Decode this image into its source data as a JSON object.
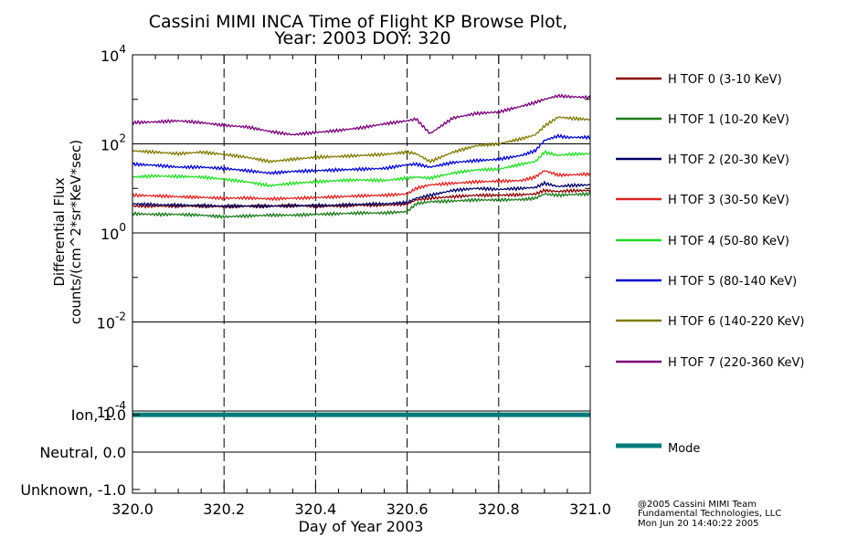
{
  "title": {
    "line1": "Cassini MIMI INCA Time of Flight KP Browse Plot,",
    "line2": "Year: 2003 DOY: 320"
  },
  "footer": {
    "line1": "@2005 Cassini MIMI Team",
    "line2": "Fundamental Technologies, LLC",
    "line3": "Mon Jun 20 14:40:22 2005"
  },
  "chart_data": [
    {
      "type": "line",
      "panel": "flux",
      "title": "Cassini MIMI INCA Time of Flight KP Browse Plot, Year: 2003 DOY: 320",
      "xlabel": "Day of Year 2003",
      "ylabel": "Differential Flux",
      "ylabel2": "counts/(cm^2*sr*KeV*sec)",
      "xlim": [
        320.0,
        321.0
      ],
      "ylim": [
        0.0001,
        10000
      ],
      "yscale": "log",
      "x_ticks": [
        "320.0",
        "320.2",
        "320.4",
        "320.6",
        "320.8",
        "321.0"
      ],
      "x_tick_values": [
        320.0,
        320.2,
        320.4,
        320.6,
        320.8,
        321.0
      ],
      "y_ticks": [
        {
          "value": 10000,
          "base": "10",
          "exp": "4"
        },
        {
          "value": 100,
          "base": "10",
          "exp": "2"
        },
        {
          "value": 1,
          "base": "10",
          "exp": "0"
        },
        {
          "value": 0.01,
          "base": "10",
          "exp": "-2"
        },
        {
          "value": 0.0001,
          "base": "10",
          "exp": "-4"
        }
      ],
      "grid": "dashed vertical at 320.2, 320.4, 320.6, 320.8; solid horizontal at decades",
      "legend_position": "right",
      "x": [
        320.0,
        320.05,
        320.1,
        320.15,
        320.2,
        320.25,
        320.3,
        320.35,
        320.4,
        320.45,
        320.5,
        320.55,
        320.6,
        320.62,
        320.65,
        320.7,
        320.75,
        320.8,
        320.85,
        320.88,
        320.9,
        320.93,
        320.95,
        321.0
      ],
      "series": [
        {
          "name": "H TOF 0 (3-10 KeV)",
          "color": "#8b0000",
          "values": [
            4.0,
            4.0,
            4.0,
            4.0,
            3.9,
            4.0,
            4.0,
            4.1,
            4.0,
            4.0,
            4.2,
            4.2,
            4.5,
            5.5,
            6.0,
            6.5,
            7.0,
            7.0,
            7.2,
            7.5,
            9.0,
            8.5,
            8.8,
            9.0
          ]
        },
        {
          "name": "H TOF 1 (10-20 KeV)",
          "color": "#1a7a1a",
          "values": [
            2.7,
            2.6,
            2.6,
            2.5,
            2.3,
            2.4,
            2.5,
            2.5,
            2.6,
            2.7,
            2.8,
            2.8,
            3.0,
            4.5,
            5.0,
            5.2,
            5.5,
            5.5,
            5.6,
            6.0,
            7.5,
            7.0,
            7.2,
            7.5
          ]
        },
        {
          "name": "H TOF 2 (20-30 KeV)",
          "color": "#000066",
          "values": [
            4.5,
            4.3,
            4.2,
            4.1,
            4.0,
            4.0,
            4.0,
            4.1,
            4.1,
            4.2,
            4.4,
            4.5,
            4.8,
            6.0,
            7.0,
            9.0,
            10.0,
            9.5,
            10.0,
            10.5,
            13.0,
            11.0,
            11.5,
            12.0
          ]
        },
        {
          "name": "H TOF 3 (30-50 KeV)",
          "color": "#dd2222",
          "values": [
            7.0,
            6.8,
            6.5,
            6.3,
            6.0,
            6.1,
            5.8,
            6.0,
            6.2,
            6.5,
            6.8,
            7.0,
            7.5,
            10.0,
            12.0,
            13.0,
            14.0,
            14.5,
            15.0,
            18.0,
            25.0,
            20.0,
            20.0,
            21.0
          ]
        },
        {
          "name": "H TOF 4 (50-80 KeV)",
          "color": "#22dd22",
          "values": [
            18.0,
            19.0,
            18.5,
            18.0,
            16.0,
            14.0,
            11.5,
            13.0,
            14.0,
            15.0,
            15.5,
            15.0,
            17.0,
            18.0,
            17.0,
            22.0,
            26.0,
            27.0,
            35.0,
            40.0,
            65.0,
            55.0,
            58.0,
            60.0
          ]
        },
        {
          "name": "H TOF 5 (80-140 KeV)",
          "color": "#0000cc",
          "values": [
            35.0,
            33.0,
            30.0,
            30.0,
            28.0,
            25.0,
            22.0,
            24.0,
            25.0,
            26.0,
            27.0,
            28.0,
            34.0,
            35.0,
            30.0,
            38.0,
            42.0,
            45.0,
            55.0,
            70.0,
            120.0,
            150.0,
            140.0,
            140.0
          ]
        },
        {
          "name": "H TOF 6 (140-220 KeV)",
          "color": "#807a00",
          "values": [
            70.0,
            65.0,
            60.0,
            65.0,
            58.0,
            50.0,
            40.0,
            45.0,
            50.0,
            52.0,
            55.0,
            58.0,
            65.0,
            60.0,
            40.0,
            65.0,
            90.0,
            100.0,
            130.0,
            160.0,
            250.0,
            400.0,
            380.0,
            350.0
          ]
        },
        {
          "name": "H TOF 7 (220-360 KeV)",
          "color": "#7a007a",
          "values": [
            300.0,
            310.0,
            330.0,
            300.0,
            260.0,
            240.0,
            190.0,
            160.0,
            180.0,
            200.0,
            230.0,
            280.0,
            330.0,
            360.0,
            170.0,
            380.0,
            480.0,
            520.0,
            700.0,
            850.0,
            1000.0,
            1200.0,
            1150.0,
            1100.0
          ]
        }
      ]
    },
    {
      "type": "line",
      "panel": "mode",
      "xlabel": "Day of Year 2003",
      "xlim": [
        320.0,
        321.0
      ],
      "ylim": [
        -1.1,
        1.1
      ],
      "y_ticks": [
        {
          "value": 1.0,
          "label": "Ion, 1.0"
        },
        {
          "value": 0.0,
          "label": "Neutral, 0.0"
        },
        {
          "value": -1.0,
          "label": "Unknown, -1.0"
        }
      ],
      "series": [
        {
          "name": "Mode",
          "color": "#007a7a",
          "x": [
            320.0,
            321.0
          ],
          "values": [
            1.0,
            1.0
          ]
        }
      ]
    }
  ]
}
